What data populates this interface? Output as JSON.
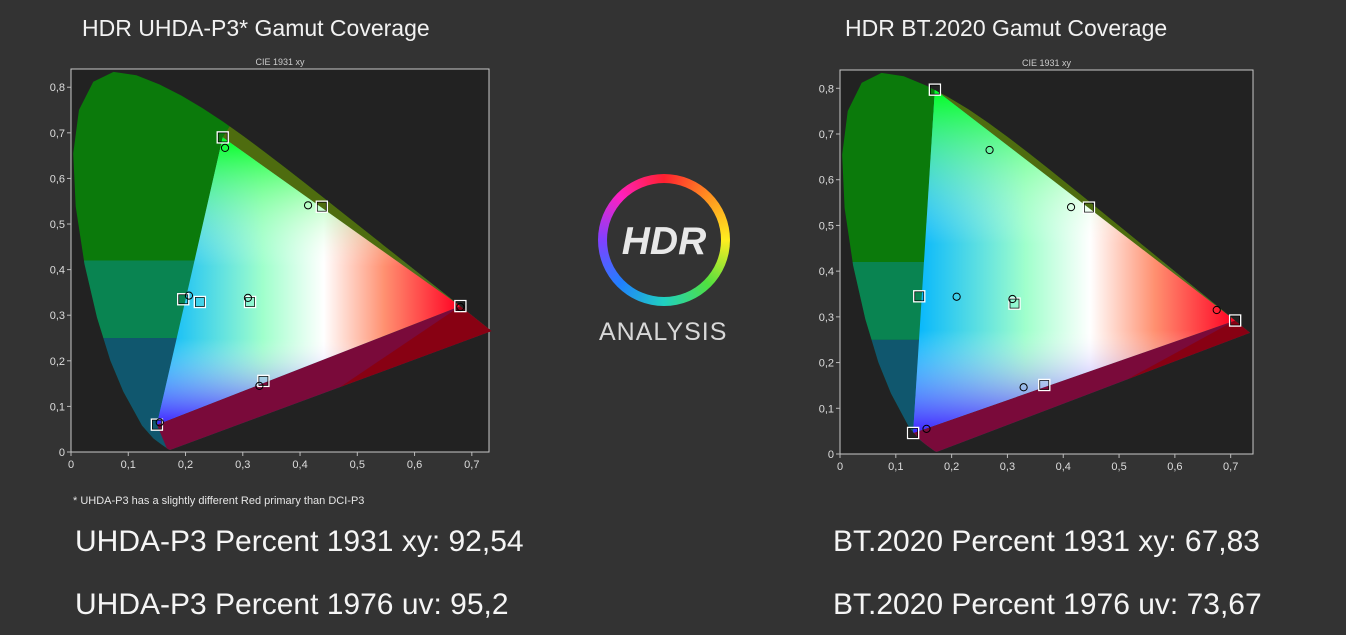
{
  "left_panel": {
    "title": "HDR UHDA-P3* Gamut Coverage",
    "footnote": "* UHDA-P3 has a slightly different Red primary than DCI-P3",
    "stat_xy": "UHDA-P3 Percent 1931 xy: 92,54",
    "stat_uv": "UHDA-P3 Percent 1976 uv: 95,2"
  },
  "right_panel": {
    "title": "HDR BT.2020  Gamut Coverage",
    "stat_xy": "BT.2020 Percent 1931 xy: 67,83",
    "stat_uv": "BT.2020 Percent 1976 uv: 73,67"
  },
  "logo": {
    "text": "HDR",
    "subtitle": "ANALYSIS"
  },
  "colors": {
    "background": "#333333",
    "plot_background": "#222222",
    "axis": "#bbbbbb"
  },
  "chart_data": [
    {
      "type": "scatter",
      "title": "CIE 1931 xy",
      "xlim": [
        0,
        0.73
      ],
      "ylim": [
        0,
        0.84
      ],
      "xticks": [
        0,
        0.1,
        0.2,
        0.3,
        0.4,
        0.5,
        0.6,
        0.7
      ],
      "xtick_labels": [
        "0",
        "0,1",
        "0,2",
        "0,3",
        "0,4",
        "0,5",
        "0,6",
        "0,7"
      ],
      "yticks": [
        0,
        0.1,
        0.2,
        0.3,
        0.4,
        0.5,
        0.6,
        0.7,
        0.8
      ],
      "ytick_labels": [
        "0",
        "0,1",
        "0,2",
        "0,3",
        "0,4",
        "0,5",
        "0,6",
        "0,7",
        "0,8"
      ],
      "gamut_triangle": [
        [
          0.68,
          0.32
        ],
        [
          0.265,
          0.69
        ],
        [
          0.15,
          0.06
        ]
      ],
      "series": [
        {
          "marker": "square",
          "points": [
            [
              0.68,
              0.32
            ],
            [
              0.265,
              0.69
            ],
            [
              0.15,
              0.06
            ],
            [
              0.225,
              0.329
            ],
            [
              0.438,
              0.538
            ],
            [
              0.196,
              0.335
            ],
            [
              0.336,
              0.156
            ],
            [
              0.3127,
              0.329
            ]
          ]
        },
        {
          "marker": "circle",
          "points": [
            [
              0.68,
              0.318
            ],
            [
              0.269,
              0.667
            ],
            [
              0.155,
              0.065
            ],
            [
              0.414,
              0.541
            ],
            [
              0.206,
              0.343
            ],
            [
              0.329,
              0.145
            ],
            [
              0.309,
              0.338
            ]
          ]
        }
      ]
    },
    {
      "type": "scatter",
      "title": "CIE 1931 xy",
      "xlim": [
        0,
        0.74
      ],
      "ylim": [
        0,
        0.84
      ],
      "xticks": [
        0,
        0.1,
        0.2,
        0.3,
        0.4,
        0.5,
        0.6,
        0.7
      ],
      "xtick_labels": [
        "0",
        "0,1",
        "0,2",
        "0,3",
        "0,4",
        "0,5",
        "0,6",
        "0,7"
      ],
      "yticks": [
        0,
        0.1,
        0.2,
        0.3,
        0.4,
        0.5,
        0.6,
        0.7,
        0.8
      ],
      "ytick_labels": [
        "0",
        "0,1",
        "0,2",
        "0,3",
        "0,4",
        "0,5",
        "0,6",
        "0,7",
        "0,8"
      ],
      "gamut_triangle": [
        [
          0.708,
          0.292
        ],
        [
          0.17,
          0.797
        ],
        [
          0.131,
          0.046
        ]
      ],
      "series": [
        {
          "marker": "square",
          "points": [
            [
              0.708,
              0.292
            ],
            [
              0.17,
              0.797
            ],
            [
              0.131,
              0.046
            ],
            [
              0.446,
              0.539
            ],
            [
              0.142,
              0.345
            ],
            [
              0.366,
              0.151
            ],
            [
              0.3127,
              0.329
            ]
          ]
        },
        {
          "marker": "circle",
          "points": [
            [
              0.675,
              0.315
            ],
            [
              0.268,
              0.665
            ],
            [
              0.155,
              0.055
            ],
            [
              0.414,
              0.54
            ],
            [
              0.209,
              0.344
            ],
            [
              0.329,
              0.146
            ],
            [
              0.309,
              0.339
            ]
          ]
        }
      ]
    }
  ]
}
